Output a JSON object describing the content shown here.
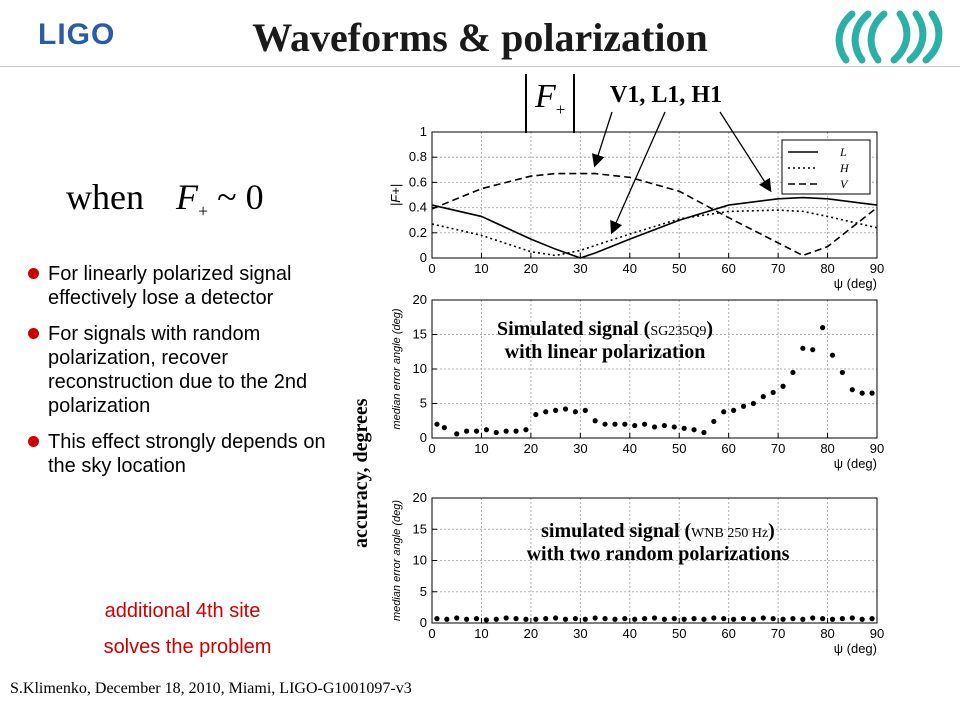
{
  "header": {
    "logo": "LIGO",
    "title": "Waveforms & polarization"
  },
  "formula": {
    "when": "when",
    "f": "F",
    "sub": "+",
    "tail": "~ 0"
  },
  "fplus_label": {
    "f": "F",
    "sub": "+"
  },
  "detectors_label": "V1, L1, H1",
  "bullets": [
    "For linearly polarized signal  effectively lose a detector",
    "For signals with random polarization,  recover reconstruction due to the 2nd polarization",
    "This effect strongly depends on the sky location"
  ],
  "note": {
    "line1": "additional 4th site",
    "line2": "solves the problem"
  },
  "footer": "S.Klimenko, December 18, 2010, Miami, LIGO-G1001097-v3",
  "accuracy_label": "accuracy, degrees",
  "ann_linear": {
    "pre": "Simulated signal (",
    "code": "SG235Q9",
    "post": ")",
    "line2": "with linear polarization"
  },
  "ann_random": {
    "pre": "simulated signal (",
    "code": "WNB 250 Hz",
    "post": ")",
    "line2": "with two random polarizations"
  },
  "colors": {
    "bullet": "#cc0000",
    "note": "#cc0000",
    "logo": "#2a5aa8",
    "virgo": "#2bb0a8"
  },
  "chart_data": [
    {
      "type": "line",
      "ylabel": "|F+|",
      "xlabel": "ψ (deg)",
      "xlim": [
        0,
        90
      ],
      "ylim": [
        0,
        1
      ],
      "xticks": [
        0,
        10,
        20,
        30,
        40,
        50,
        60,
        70,
        80,
        90
      ],
      "yticks": [
        0,
        0.2,
        0.4,
        0.6,
        0.8,
        1
      ],
      "legend_position": "top-right",
      "x": [
        0,
        10,
        20,
        25,
        30,
        33,
        40,
        50,
        60,
        70,
        75,
        80,
        90
      ],
      "series": [
        {
          "name": "L",
          "style": "solid",
          "values": [
            0.42,
            0.33,
            0.15,
            0.07,
            0.0,
            0.04,
            0.15,
            0.3,
            0.42,
            0.47,
            0.48,
            0.47,
            0.42
          ]
        },
        {
          "name": "H",
          "style": "dotted",
          "values": [
            0.27,
            0.18,
            0.05,
            0.02,
            0.06,
            0.1,
            0.19,
            0.31,
            0.37,
            0.38,
            0.37,
            0.33,
            0.24
          ]
        },
        {
          "name": "V",
          "style": "dashed",
          "values": [
            0.39,
            0.55,
            0.65,
            0.67,
            0.67,
            0.67,
            0.64,
            0.53,
            0.32,
            0.12,
            0.02,
            0.09,
            0.4
          ]
        }
      ]
    },
    {
      "type": "scatter",
      "ylabel": "median error angle (deg)",
      "xlabel": "ψ (deg)",
      "xlim": [
        0,
        90
      ],
      "ylim": [
        0,
        20
      ],
      "xticks": [
        0,
        10,
        20,
        30,
        40,
        50,
        60,
        70,
        80,
        90
      ],
      "yticks": [
        0,
        5,
        10,
        15,
        20
      ],
      "x": [
        1,
        2.5,
        5,
        7,
        9,
        11,
        13,
        15,
        17,
        19,
        21,
        23,
        25,
        27,
        29,
        31,
        33,
        35,
        37,
        39,
        41,
        43,
        45,
        47,
        49,
        51,
        53,
        55,
        57,
        59,
        61,
        63,
        65,
        67,
        69,
        71,
        73,
        75,
        77,
        79,
        81,
        83,
        85,
        87,
        89
      ],
      "values": [
        2,
        1.5,
        0.6,
        1,
        1,
        1.2,
        0.8,
        1,
        1,
        1.2,
        3.4,
        3.8,
        4,
        4.2,
        3.8,
        4,
        2.5,
        2,
        2,
        2,
        1.8,
        2,
        1.6,
        1.8,
        1.6,
        1.4,
        1.2,
        0.8,
        2.4,
        3.8,
        4,
        4.6,
        5,
        6,
        6.6,
        7.5,
        9.5,
        13,
        12.8,
        16,
        12,
        9.5,
        7,
        6.5,
        6.5
      ]
    },
    {
      "type": "scatter",
      "ylabel": "median error angle (deg)",
      "xlabel": "ψ (deg)",
      "xlim": [
        0,
        90
      ],
      "ylim": [
        0,
        20
      ],
      "xticks": [
        0,
        10,
        20,
        30,
        40,
        50,
        60,
        70,
        80,
        90
      ],
      "yticks": [
        0,
        5,
        10,
        15,
        20
      ],
      "x": [
        1,
        3,
        5,
        7,
        9,
        11,
        13,
        15,
        17,
        19,
        21,
        23,
        25,
        27,
        29,
        31,
        33,
        35,
        37,
        39,
        41,
        43,
        45,
        47,
        49,
        51,
        53,
        55,
        57,
        59,
        61,
        63,
        65,
        67,
        69,
        71,
        73,
        75,
        77,
        79,
        81,
        83,
        85,
        87,
        89
      ],
      "values": [
        0.7,
        0.6,
        0.8,
        0.6,
        0.7,
        0.5,
        0.6,
        0.8,
        0.7,
        0.6,
        0.6,
        0.7,
        0.8,
        0.6,
        0.7,
        0.6,
        0.8,
        0.7,
        0.6,
        0.7,
        0.6,
        0.7,
        0.8,
        0.6,
        0.7,
        0.6,
        0.7,
        0.6,
        0.8,
        0.7,
        0.6,
        0.7,
        0.6,
        0.8,
        0.7,
        0.6,
        0.7,
        0.6,
        0.8,
        0.7,
        0.6,
        0.7,
        0.8,
        0.6,
        0.7
      ]
    }
  ]
}
